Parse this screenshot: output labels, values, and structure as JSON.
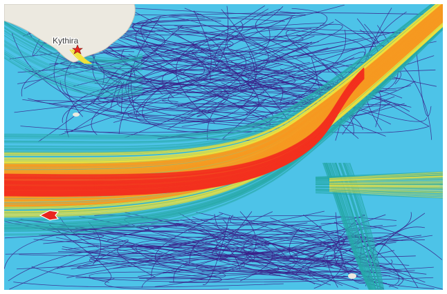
{
  "map": {
    "title": "",
    "place_label": "Kythira",
    "legend_note": "",
    "colors": {
      "water": "#4dc3e8",
      "land": "#ece9e0",
      "track_sparse": "#3a1f88",
      "track_low": "#27a9a8",
      "track_mid": "#f2e23a",
      "track_high": "#f79a21",
      "track_max": "#f2311f",
      "vessel_marker": "#e8261e"
    },
    "icons": [
      "vessel-arrow-icon",
      "port-star-icon"
    ]
  }
}
